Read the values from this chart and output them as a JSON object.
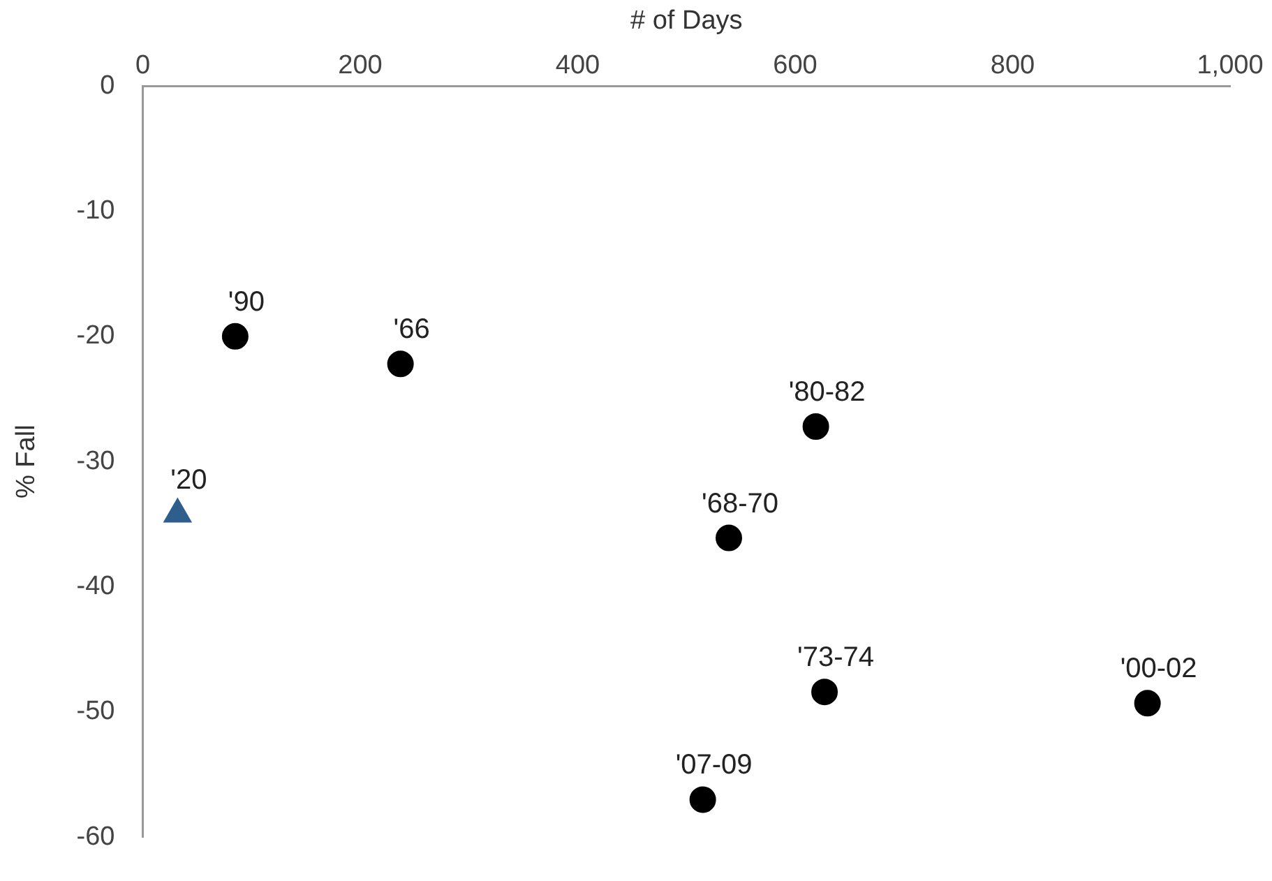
{
  "chart_data": {
    "type": "scatter",
    "xlabel": "# of Days",
    "ylabel": "% Fall",
    "xlim": [
      0,
      1000
    ],
    "xticks": [
      0,
      200,
      400,
      600,
      800,
      {
        "value": 1000,
        "label": "1,000"
      }
    ],
    "ylim": [
      -60,
      0
    ],
    "yticks": [
      -60,
      -50,
      -40,
      -30,
      -20,
      -10,
      0
    ],
    "grid": false,
    "legend": false,
    "series": [
      {
        "marker": "circle",
        "color": "#000000",
        "x": [
          85,
          237,
          619,
          539,
          627,
          924,
          515
        ],
        "values": [
          -20.0,
          -22.2,
          -27.2,
          -36.1,
          -48.4,
          -49.3,
          -57.0
        ]
      },
      {
        "marker": "triangle",
        "color": "#2e5e8c",
        "x": [
          32
        ],
        "values": [
          -34.2
        ]
      }
    ],
    "annotations": [
      {
        "text": "'90",
        "x": 85,
        "y": -20.0
      },
      {
        "text": "'66",
        "x": 237,
        "y": -22.2
      },
      {
        "text": "'80-82",
        "x": 619,
        "y": -27.2
      },
      {
        "text": "'68-70",
        "x": 539,
        "y": -36.1
      },
      {
        "text": "'73-74",
        "x": 627,
        "y": -48.4
      },
      {
        "text": "'00-02",
        "x": 924,
        "y": -49.3
      },
      {
        "text": "'07-09",
        "x": 515,
        "y": -57.0
      },
      {
        "text": "'20",
        "x": 32,
        "y": -34.2
      }
    ]
  }
}
